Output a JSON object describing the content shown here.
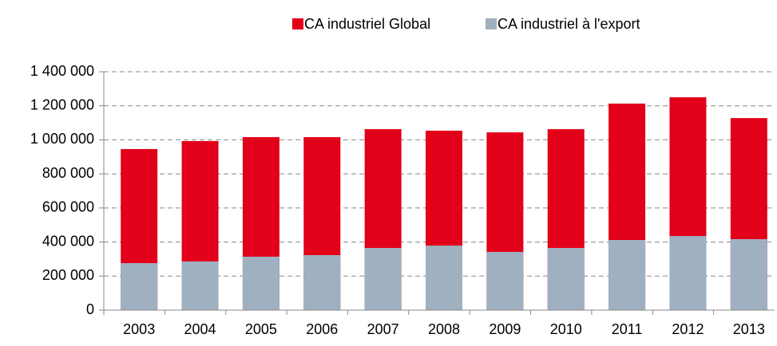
{
  "chart_data": {
    "type": "bar",
    "categories": [
      "2003",
      "2004",
      "2005",
      "2006",
      "2007",
      "2008",
      "2009",
      "2010",
      "2011",
      "2012",
      "2013"
    ],
    "series": [
      {
        "name": "CA industriel Global",
        "color": "#e2001a",
        "values": [
          946000,
          993000,
          1016000,
          1016000,
          1063000,
          1054000,
          1044000,
          1063000,
          1213000,
          1250000,
          1128000
        ]
      },
      {
        "name": "CA industriel à l'export",
        "color": "#9fb1c1",
        "values": [
          276000,
          286000,
          314000,
          323000,
          365000,
          379000,
          342000,
          365000,
          412000,
          435000,
          417000
        ]
      }
    ],
    "ylim": [
      0,
      1400000
    ],
    "yticks": [
      0,
      {
        "value": 200000,
        "label": "200 000"
      },
      {
        "value": 400000,
        "label": "400 000"
      },
      {
        "value": 600000,
        "label": "600 000"
      },
      {
        "value": 800000,
        "label": "800 000"
      },
      {
        "value": 1000000,
        "label": "1 000 000"
      },
      {
        "value": 1200000,
        "label": "1 200 000"
      },
      {
        "value": 1400000,
        "label": "1 400 000"
      }
    ],
    "grid": true,
    "legend": "top",
    "overlap": true
  }
}
